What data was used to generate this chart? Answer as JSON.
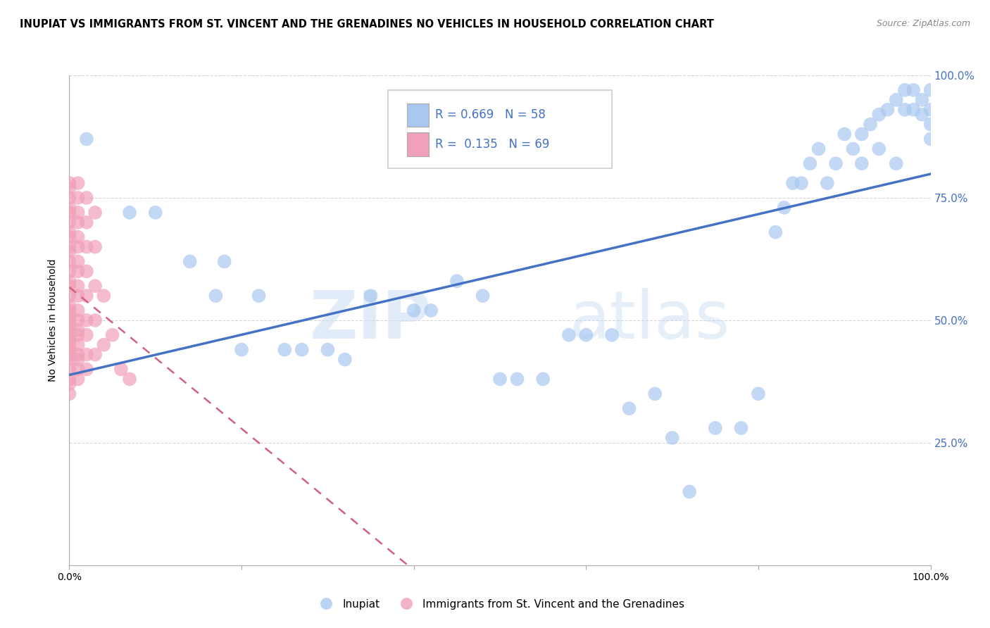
{
  "title": "INUPIAT VS IMMIGRANTS FROM ST. VINCENT AND THE GRENADINES NO VEHICLES IN HOUSEHOLD CORRELATION CHART",
  "source": "Source: ZipAtlas.com",
  "ylabel": "No Vehicles in Household",
  "xlim": [
    0,
    1.0
  ],
  "ylim": [
    0,
    1.0
  ],
  "watermark_zip": "ZIP",
  "watermark_atlas": "atlas",
  "legend_box": {
    "r1": 0.669,
    "n1": 58,
    "r2": 0.135,
    "n2": 69
  },
  "inupiat_color": "#a8c8f0",
  "immigrant_color": "#f0a0b8",
  "inupiat_line_color": "#4472c4",
  "immigrant_line_color": "#d06080",
  "inupiat_points": [
    [
      0.02,
      0.87
    ],
    [
      0.07,
      0.72
    ],
    [
      0.1,
      0.72
    ],
    [
      0.14,
      0.62
    ],
    [
      0.17,
      0.55
    ],
    [
      0.18,
      0.62
    ],
    [
      0.2,
      0.44
    ],
    [
      0.22,
      0.55
    ],
    [
      0.25,
      0.44
    ],
    [
      0.27,
      0.44
    ],
    [
      0.3,
      0.44
    ],
    [
      0.32,
      0.42
    ],
    [
      0.35,
      0.55
    ],
    [
      0.4,
      0.52
    ],
    [
      0.42,
      0.52
    ],
    [
      0.45,
      0.58
    ],
    [
      0.48,
      0.55
    ],
    [
      0.5,
      0.38
    ],
    [
      0.52,
      0.38
    ],
    [
      0.55,
      0.38
    ],
    [
      0.58,
      0.47
    ],
    [
      0.6,
      0.47
    ],
    [
      0.63,
      0.47
    ],
    [
      0.65,
      0.32
    ],
    [
      0.68,
      0.35
    ],
    [
      0.7,
      0.26
    ],
    [
      0.72,
      0.15
    ],
    [
      0.75,
      0.28
    ],
    [
      0.78,
      0.28
    ],
    [
      0.8,
      0.35
    ],
    [
      0.82,
      0.68
    ],
    [
      0.83,
      0.73
    ],
    [
      0.84,
      0.78
    ],
    [
      0.85,
      0.78
    ],
    [
      0.86,
      0.82
    ],
    [
      0.87,
      0.85
    ],
    [
      0.88,
      0.78
    ],
    [
      0.89,
      0.82
    ],
    [
      0.9,
      0.88
    ],
    [
      0.91,
      0.85
    ],
    [
      0.92,
      0.88
    ],
    [
      0.93,
      0.9
    ],
    [
      0.94,
      0.92
    ],
    [
      0.95,
      0.93
    ],
    [
      0.96,
      0.95
    ],
    [
      0.97,
      0.97
    ],
    [
      0.97,
      0.93
    ],
    [
      0.98,
      0.97
    ],
    [
      0.98,
      0.93
    ],
    [
      0.99,
      0.95
    ],
    [
      0.99,
      0.92
    ],
    [
      1.0,
      0.97
    ],
    [
      1.0,
      0.93
    ],
    [
      1.0,
      0.9
    ],
    [
      1.0,
      0.87
    ],
    [
      0.96,
      0.82
    ],
    [
      0.94,
      0.85
    ],
    [
      0.92,
      0.82
    ]
  ],
  "immigrant_points": [
    [
      0.0,
      0.35
    ],
    [
      0.0,
      0.37
    ],
    [
      0.0,
      0.38
    ],
    [
      0.0,
      0.4
    ],
    [
      0.0,
      0.42
    ],
    [
      0.0,
      0.43
    ],
    [
      0.0,
      0.44
    ],
    [
      0.0,
      0.45
    ],
    [
      0.0,
      0.46
    ],
    [
      0.0,
      0.47
    ],
    [
      0.0,
      0.48
    ],
    [
      0.0,
      0.49
    ],
    [
      0.0,
      0.5
    ],
    [
      0.0,
      0.51
    ],
    [
      0.0,
      0.52
    ],
    [
      0.0,
      0.53
    ],
    [
      0.0,
      0.55
    ],
    [
      0.0,
      0.57
    ],
    [
      0.0,
      0.58
    ],
    [
      0.0,
      0.6
    ],
    [
      0.0,
      0.62
    ],
    [
      0.0,
      0.64
    ],
    [
      0.0,
      0.65
    ],
    [
      0.0,
      0.67
    ],
    [
      0.0,
      0.68
    ],
    [
      0.0,
      0.7
    ],
    [
      0.0,
      0.72
    ],
    [
      0.0,
      0.73
    ],
    [
      0.0,
      0.75
    ],
    [
      0.0,
      0.77
    ],
    [
      0.0,
      0.78
    ],
    [
      0.01,
      0.38
    ],
    [
      0.01,
      0.4
    ],
    [
      0.01,
      0.42
    ],
    [
      0.01,
      0.43
    ],
    [
      0.01,
      0.45
    ],
    [
      0.01,
      0.47
    ],
    [
      0.01,
      0.48
    ],
    [
      0.01,
      0.5
    ],
    [
      0.01,
      0.52
    ],
    [
      0.01,
      0.55
    ],
    [
      0.01,
      0.57
    ],
    [
      0.01,
      0.6
    ],
    [
      0.01,
      0.62
    ],
    [
      0.01,
      0.65
    ],
    [
      0.01,
      0.67
    ],
    [
      0.01,
      0.7
    ],
    [
      0.01,
      0.72
    ],
    [
      0.01,
      0.75
    ],
    [
      0.01,
      0.78
    ],
    [
      0.02,
      0.4
    ],
    [
      0.02,
      0.43
    ],
    [
      0.02,
      0.47
    ],
    [
      0.02,
      0.5
    ],
    [
      0.02,
      0.55
    ],
    [
      0.02,
      0.6
    ],
    [
      0.02,
      0.65
    ],
    [
      0.02,
      0.7
    ],
    [
      0.02,
      0.75
    ],
    [
      0.03,
      0.43
    ],
    [
      0.03,
      0.5
    ],
    [
      0.03,
      0.57
    ],
    [
      0.03,
      0.65
    ],
    [
      0.03,
      0.72
    ],
    [
      0.04,
      0.45
    ],
    [
      0.04,
      0.55
    ],
    [
      0.05,
      0.47
    ],
    [
      0.06,
      0.4
    ],
    [
      0.07,
      0.38
    ]
  ],
  "background_color": "#ffffff",
  "grid_color": "#cccccc"
}
